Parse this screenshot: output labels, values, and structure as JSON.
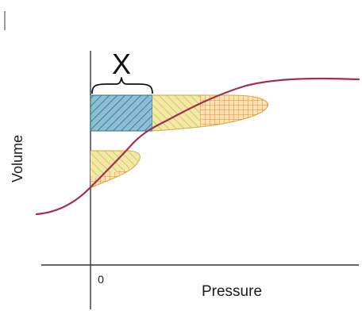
{
  "labels": {
    "marker": "X",
    "x_axis": "Pressure",
    "y_axis": "Volume",
    "origin": "0"
  },
  "colors": {
    "curve": "#a0304f",
    "hatch_yellow": "#c8c25a",
    "fill_yellow": "#f3e8a6",
    "orange_grid": "#e08a2e",
    "fill_orange": "#fbe3b5",
    "blue_fill": "#8cbfd4",
    "blue_hatch": "#2f6f88",
    "axis": "#333333"
  }
}
